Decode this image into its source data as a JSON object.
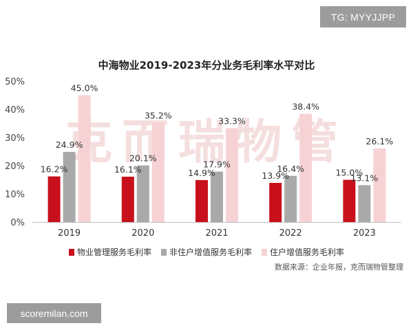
{
  "badges": {
    "tg": "TG: MYYJJPP",
    "site": "scoremilan.com"
  },
  "watermark": "克而瑞物管",
  "source": "数据来源：企业年报，克而瑞物管整理",
  "colors": {
    "property": "#c8101c",
    "nonresidential": "#a9a9a9",
    "residential": "#f7d2d4"
  },
  "chart_data": {
    "type": "bar",
    "title": "中海物业2019-2023年分业务毛利率水平对比",
    "categories": [
      "2019",
      "2020",
      "2021",
      "2022",
      "2023"
    ],
    "series": [
      {
        "name": "物业管理服务毛利率",
        "values": [
          16.2,
          16.1,
          14.9,
          13.9,
          15.0
        ],
        "labels": [
          "16.2%",
          "16.1%",
          "14.9%",
          "13.9%",
          "15.0%"
        ]
      },
      {
        "name": "非住户增值服务毛利率",
        "values": [
          24.9,
          20.1,
          17.9,
          16.4,
          13.1
        ],
        "labels": [
          "24.9%",
          "20.1%",
          "17.9%",
          "16.4%",
          "13.1%"
        ]
      },
      {
        "name": "住户增值服务毛利率",
        "values": [
          45.0,
          35.2,
          33.3,
          38.4,
          26.1
        ],
        "labels": [
          "45.0%",
          "35.2%",
          "33.3%",
          "38.4%",
          "26.1%"
        ]
      }
    ],
    "yticks": [
      "0%",
      "10%",
      "20%",
      "30%",
      "40%",
      "50%"
    ],
    "ylim": [
      0,
      50
    ],
    "grid": false,
    "legend": "bottom"
  }
}
